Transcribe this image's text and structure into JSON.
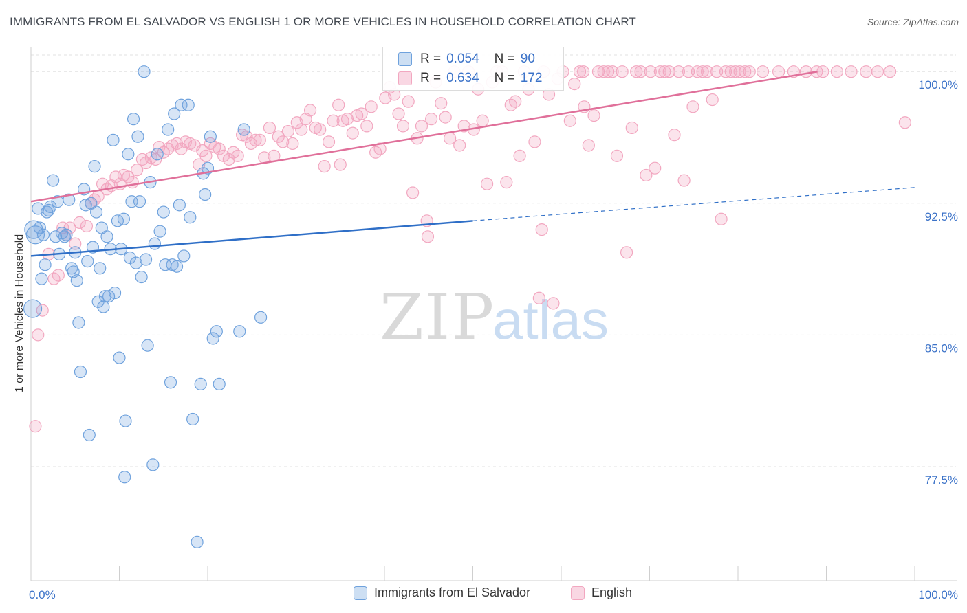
{
  "title": "IMMIGRANTS FROM EL SALVADOR VS ENGLISH 1 OR MORE VEHICLES IN HOUSEHOLD CORRELATION CHART",
  "source": "Source: ZipAtlas.com",
  "watermark": {
    "zip": "ZIP",
    "atlas": "atlas"
  },
  "legend_box": {
    "rows": [
      {
        "r_label": "R =",
        "r_value": "0.054",
        "n_label": "N =",
        "n_value": "90"
      },
      {
        "r_label": "R =",
        "r_value": "0.634",
        "n_label": "N =",
        "n_value": "172"
      }
    ]
  },
  "chart_data": {
    "type": "scatter",
    "title": "IMMIGRANTS FROM EL SALVADOR VS ENGLISH 1 OR MORE VEHICLES IN HOUSEHOLD CORRELATION CHART",
    "xlabel": "",
    "ylabel": "1 or more Vehicles in Household",
    "xlim": [
      0,
      100
    ],
    "ylim": [
      71.0,
      101.3
    ],
    "x_tick_labels": [
      "0.0%",
      "100.0%"
    ],
    "y_ticks": [
      77.5,
      85.0,
      92.5,
      100.0
    ],
    "y_tick_labels": [
      "77.5%",
      "85.0%",
      "92.5%",
      "100.0%"
    ],
    "grid": true,
    "legend": "bottom-center",
    "colors": {
      "blue": "#6fa2dd",
      "blue_line": "#2f6fc7",
      "pink": "#f2a7c0",
      "pink_line": "#e0709a",
      "tick": "#3b72c8"
    },
    "series": [
      {
        "name": "Immigrants from El Salvador",
        "r": 0.054,
        "n": 90,
        "trend": {
          "x0": 0,
          "y0": 89.5,
          "x1": 50,
          "y1": 91.5,
          "x_dash_end": 100,
          "y_dash_end": 93.4
        },
        "points": [
          [
            0.2,
            86.5
          ],
          [
            0.3,
            91.0
          ],
          [
            0.5,
            90.7
          ],
          [
            0.8,
            92.2
          ],
          [
            1.0,
            91.1
          ],
          [
            1.2,
            88.2
          ],
          [
            1.4,
            90.7
          ],
          [
            1.6,
            89.0
          ],
          [
            1.8,
            92.0
          ],
          [
            2.0,
            92.1
          ],
          [
            2.2,
            92.3
          ],
          [
            2.5,
            93.8
          ],
          [
            2.8,
            90.6
          ],
          [
            3.0,
            92.6
          ],
          [
            3.2,
            89.6
          ],
          [
            3.5,
            90.8
          ],
          [
            3.8,
            90.6
          ],
          [
            4.0,
            90.7
          ],
          [
            4.3,
            92.7
          ],
          [
            4.6,
            88.8
          ],
          [
            4.8,
            88.6
          ],
          [
            5.0,
            89.7
          ],
          [
            5.2,
            88.1
          ],
          [
            5.4,
            85.7
          ],
          [
            5.6,
            82.9
          ],
          [
            6.0,
            93.3
          ],
          [
            6.2,
            92.4
          ],
          [
            6.4,
            89.2
          ],
          [
            6.6,
            79.3
          ],
          [
            6.8,
            92.5
          ],
          [
            7.0,
            90.0
          ],
          [
            7.2,
            94.6
          ],
          [
            7.4,
            92.0
          ],
          [
            7.6,
            86.9
          ],
          [
            7.8,
            88.8
          ],
          [
            8.0,
            91.1
          ],
          [
            8.2,
            86.6
          ],
          [
            8.4,
            87.2
          ],
          [
            8.6,
            90.6
          ],
          [
            8.8,
            87.2
          ],
          [
            9.0,
            89.9
          ],
          [
            9.3,
            96.1
          ],
          [
            9.5,
            87.4
          ],
          [
            9.8,
            91.5
          ],
          [
            10.0,
            83.7
          ],
          [
            10.2,
            89.9
          ],
          [
            10.5,
            91.6
          ],
          [
            10.7,
            80.1
          ],
          [
            11.0,
            95.3
          ],
          [
            11.2,
            89.4
          ],
          [
            11.4,
            92.6
          ],
          [
            11.6,
            97.3
          ],
          [
            11.9,
            89.1
          ],
          [
            12.1,
            96.3
          ],
          [
            12.3,
            92.6
          ],
          [
            12.5,
            88.3
          ],
          [
            12.8,
            100.0
          ],
          [
            13.0,
            89.3
          ],
          [
            13.2,
            84.4
          ],
          [
            13.5,
            93.7
          ],
          [
            13.8,
            77.6
          ],
          [
            14.0,
            90.2
          ],
          [
            14.3,
            95.3
          ],
          [
            14.6,
            90.9
          ],
          [
            15.0,
            92.0
          ],
          [
            15.2,
            89.0
          ],
          [
            15.5,
            96.7
          ],
          [
            15.8,
            82.3
          ],
          [
            16.0,
            89.0
          ],
          [
            16.2,
            97.6
          ],
          [
            16.5,
            88.9
          ],
          [
            16.8,
            92.4
          ],
          [
            17.0,
            98.1
          ],
          [
            17.3,
            89.5
          ],
          [
            17.8,
            98.1
          ],
          [
            18.0,
            91.7
          ],
          [
            18.3,
            80.2
          ],
          [
            18.8,
            73.2
          ],
          [
            19.2,
            82.2
          ],
          [
            19.5,
            94.2
          ],
          [
            19.7,
            93.0
          ],
          [
            20.0,
            94.5
          ],
          [
            20.3,
            96.3
          ],
          [
            20.6,
            84.8
          ],
          [
            21.0,
            85.2
          ],
          [
            21.3,
            82.2
          ],
          [
            23.6,
            85.2
          ],
          [
            24.1,
            96.7
          ],
          [
            26.0,
            86.0
          ],
          [
            10.6,
            76.9
          ]
        ]
      },
      {
        "name": "English",
        "r": 0.634,
        "n": 172,
        "trend": {
          "x0": 0,
          "y0": 92.6,
          "x1": 89,
          "y1": 100.0
        },
        "points": [
          [
            0.5,
            79.8
          ],
          [
            0.8,
            85.0
          ],
          [
            1.3,
            86.4
          ],
          [
            2.0,
            89.6
          ],
          [
            2.6,
            88.2
          ],
          [
            3.1,
            88.4
          ],
          [
            3.6,
            91.1
          ],
          [
            4.0,
            90.7
          ],
          [
            4.4,
            91.1
          ],
          [
            5.0,
            90.2
          ],
          [
            5.5,
            91.4
          ],
          [
            6.3,
            91.2
          ],
          [
            6.8,
            92.5
          ],
          [
            7.2,
            92.7
          ],
          [
            7.6,
            92.9
          ],
          [
            8.1,
            93.6
          ],
          [
            8.6,
            93.3
          ],
          [
            9.1,
            93.5
          ],
          [
            9.6,
            94.0
          ],
          [
            10.1,
            93.6
          ],
          [
            10.5,
            94.1
          ],
          [
            11.0,
            94.0
          ],
          [
            11.5,
            93.7
          ],
          [
            12.0,
            94.4
          ],
          [
            12.6,
            95.0
          ],
          [
            13.0,
            94.8
          ],
          [
            13.6,
            95.1
          ],
          [
            14.1,
            95.0
          ],
          [
            14.5,
            95.7
          ],
          [
            15.0,
            95.4
          ],
          [
            15.5,
            95.6
          ],
          [
            16.0,
            95.8
          ],
          [
            16.5,
            95.9
          ],
          [
            17.0,
            95.6
          ],
          [
            17.5,
            96.0
          ],
          [
            18.0,
            95.9
          ],
          [
            18.5,
            95.8
          ],
          [
            19.0,
            94.7
          ],
          [
            19.4,
            95.5
          ],
          [
            19.8,
            95.2
          ],
          [
            20.3,
            95.9
          ],
          [
            20.8,
            95.7
          ],
          [
            21.3,
            95.6
          ],
          [
            21.8,
            95.2
          ],
          [
            22.4,
            95.0
          ],
          [
            22.9,
            95.4
          ],
          [
            23.4,
            95.2
          ],
          [
            23.9,
            96.4
          ],
          [
            24.4,
            96.3
          ],
          [
            24.9,
            95.9
          ],
          [
            25.4,
            96.1
          ],
          [
            25.9,
            96.1
          ],
          [
            26.4,
            95.1
          ],
          [
            27.0,
            96.8
          ],
          [
            27.5,
            95.2
          ],
          [
            28.0,
            96.3
          ],
          [
            28.5,
            96.0
          ],
          [
            29.1,
            96.6
          ],
          [
            29.6,
            95.9
          ],
          [
            30.1,
            97.1
          ],
          [
            30.6,
            96.7
          ],
          [
            31.1,
            97.3
          ],
          [
            31.6,
            97.8
          ],
          [
            32.2,
            96.8
          ],
          [
            32.7,
            96.7
          ],
          [
            33.2,
            94.6
          ],
          [
            33.7,
            96.0
          ],
          [
            34.2,
            97.2
          ],
          [
            34.8,
            98.1
          ],
          [
            35.3,
            97.2
          ],
          [
            35.8,
            97.3
          ],
          [
            36.4,
            96.5
          ],
          [
            36.9,
            97.5
          ],
          [
            37.4,
            97.6
          ],
          [
            38.0,
            96.9
          ],
          [
            38.5,
            98.0
          ],
          [
            39.0,
            95.4
          ],
          [
            39.5,
            95.6
          ],
          [
            40.1,
            98.5
          ],
          [
            40.6,
            99.1
          ],
          [
            41.1,
            98.7
          ],
          [
            41.6,
            97.6
          ],
          [
            42.1,
            96.9
          ],
          [
            42.7,
            98.3
          ],
          [
            43.2,
            93.1
          ],
          [
            43.7,
            96.2
          ],
          [
            44.2,
            96.9
          ],
          [
            44.8,
            91.5
          ],
          [
            45.3,
            97.3
          ],
          [
            45.8,
            99.4
          ],
          [
            46.4,
            98.2
          ],
          [
            46.9,
            97.4
          ],
          [
            47.4,
            96.2
          ],
          [
            47.9,
            100.0
          ],
          [
            48.5,
            95.8
          ],
          [
            49.0,
            96.9
          ],
          [
            49.5,
            100.0
          ],
          [
            50.1,
            96.7
          ],
          [
            50.6,
            99.0
          ],
          [
            51.1,
            97.2
          ],
          [
            51.6,
            93.6
          ],
          [
            52.2,
            99.4
          ],
          [
            52.7,
            100.0
          ],
          [
            53.3,
            100.0
          ],
          [
            53.8,
            93.7
          ],
          [
            54.3,
            98.1
          ],
          [
            54.8,
            98.3
          ],
          [
            55.3,
            95.2
          ],
          [
            55.8,
            100.0
          ],
          [
            56.3,
            99.0
          ],
          [
            57.0,
            96.0
          ],
          [
            57.5,
            87.1
          ],
          [
            58.0,
            100.0
          ],
          [
            58.6,
            98.7
          ],
          [
            59.1,
            86.8
          ],
          [
            59.6,
            99.6
          ],
          [
            60.2,
            100.0
          ],
          [
            61.0,
            97.2
          ],
          [
            61.5,
            99.3
          ],
          [
            62.1,
            100.0
          ],
          [
            62.6,
            98.0
          ],
          [
            63.1,
            95.8
          ],
          [
            63.7,
            97.5
          ],
          [
            64.2,
            100.0
          ],
          [
            64.8,
            100.0
          ],
          [
            65.3,
            100.0
          ],
          [
            65.8,
            100.0
          ],
          [
            66.3,
            95.2
          ],
          [
            66.9,
            100.0
          ],
          [
            67.4,
            89.7
          ],
          [
            68.0,
            96.8
          ],
          [
            68.5,
            100.0
          ],
          [
            69.0,
            100.0
          ],
          [
            69.6,
            94.1
          ],
          [
            70.1,
            100.0
          ],
          [
            70.6,
            94.5
          ],
          [
            71.2,
            100.0
          ],
          [
            71.7,
            100.0
          ],
          [
            72.2,
            100.0
          ],
          [
            72.8,
            96.4
          ],
          [
            73.3,
            100.0
          ],
          [
            73.9,
            93.8
          ],
          [
            74.4,
            100.0
          ],
          [
            74.9,
            98.0
          ],
          [
            75.4,
            100.0
          ],
          [
            76.0,
            100.0
          ],
          [
            76.5,
            100.0
          ],
          [
            77.1,
            98.4
          ],
          [
            77.6,
            100.0
          ],
          [
            78.1,
            91.6
          ],
          [
            78.6,
            100.0
          ],
          [
            79.2,
            100.0
          ],
          [
            79.7,
            100.0
          ],
          [
            80.2,
            100.0
          ],
          [
            80.8,
            100.0
          ],
          [
            81.3,
            100.0
          ],
          [
            82.8,
            100.0
          ],
          [
            84.6,
            100.0
          ],
          [
            86.3,
            100.0
          ],
          [
            87.7,
            100.0
          ],
          [
            88.9,
            100.0
          ],
          [
            89.6,
            100.0
          ],
          [
            91.2,
            100.0
          ],
          [
            92.8,
            100.0
          ],
          [
            94.5,
            100.0
          ],
          [
            95.8,
            100.0
          ],
          [
            97.2,
            100.0
          ],
          [
            98.9,
            97.1
          ],
          [
            35.0,
            94.7
          ],
          [
            44.9,
            90.6
          ],
          [
            57.8,
            91.0
          ],
          [
            62.5,
            100.0
          ]
        ]
      }
    ]
  }
}
